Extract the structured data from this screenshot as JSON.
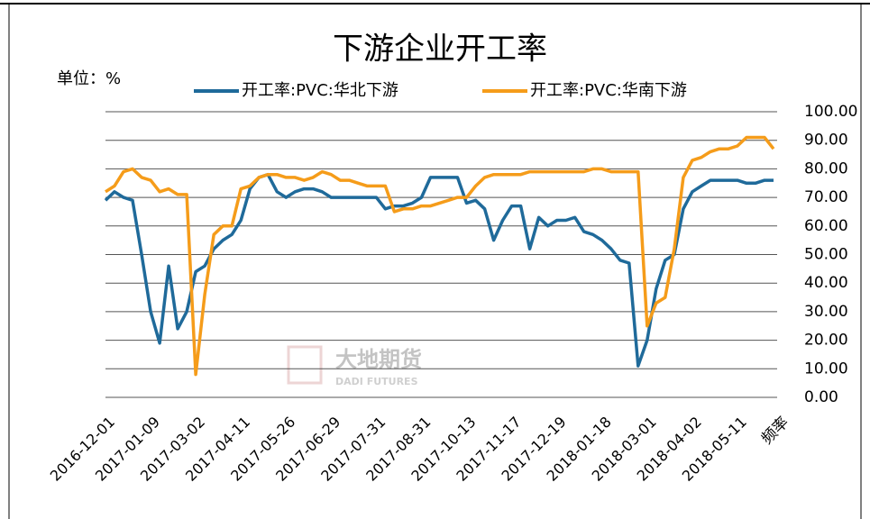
{
  "chart_data": {
    "type": "line",
    "title": "下游企业开工率",
    "unit_label": "单位：%",
    "x_label": "频率",
    "watermark": {
      "name": "大地期货",
      "sub": "DADI FUTURES"
    },
    "categories": [
      "2016-12-01",
      null,
      null,
      null,
      null,
      "2017-01-09",
      null,
      null,
      null,
      null,
      "2017-03-02",
      null,
      null,
      null,
      null,
      "2017-04-11",
      null,
      null,
      null,
      null,
      "2017-05-26",
      null,
      null,
      null,
      null,
      "2017-06-29",
      null,
      null,
      null,
      null,
      "2017-07-31",
      null,
      null,
      null,
      null,
      "2017-08-31",
      null,
      null,
      null,
      null,
      "2017-10-13",
      null,
      null,
      null,
      null,
      "2017-11-17",
      null,
      null,
      null,
      null,
      "2017-12-19",
      null,
      null,
      null,
      null,
      "2018-01-18",
      null,
      null,
      null,
      null,
      "2018-03-01",
      null,
      null,
      null,
      null,
      "2018-04-02",
      null,
      null,
      null,
      null,
      "2018-05-11",
      null,
      null,
      null,
      null
    ],
    "series": [
      {
        "name": "开工率:PVC:华北下游",
        "color": "#1f6a9a",
        "values": [
          69,
          72,
          70,
          69,
          50,
          30,
          19,
          46,
          24,
          30,
          44,
          46,
          52,
          55,
          57,
          62,
          73,
          77,
          78,
          72,
          70,
          72,
          73,
          73,
          72,
          70,
          70,
          70,
          70,
          70,
          70,
          66,
          67,
          67,
          68,
          70,
          77,
          77,
          77,
          77,
          68,
          69,
          66,
          55,
          62,
          67,
          67,
          52,
          63,
          60,
          62,
          62,
          63,
          58,
          57,
          55,
          52,
          48,
          47,
          11,
          20,
          38,
          48,
          50,
          66,
          72,
          74,
          76,
          76,
          76,
          76,
          75,
          75,
          76,
          76
        ]
      },
      {
        "name": "开工率:PVC:华南下游",
        "color": "#f59c1a",
        "values": [
          72,
          74,
          79,
          80,
          77,
          76,
          72,
          73,
          71,
          71,
          8,
          36,
          57,
          60,
          60,
          73,
          74,
          77,
          78,
          78,
          77,
          77,
          76,
          77,
          79,
          78,
          76,
          76,
          75,
          74,
          74,
          74,
          65,
          66,
          66,
          67,
          67,
          68,
          69,
          70,
          70,
          74,
          77,
          78,
          78,
          78,
          78,
          79,
          79,
          79,
          79,
          79,
          79,
          79,
          80,
          80,
          79,
          79,
          79,
          79,
          25,
          33,
          35,
          52,
          77,
          83,
          84,
          86,
          87,
          87,
          88,
          91,
          91,
          91,
          87
        ]
      }
    ],
    "ylim": [
      0,
      100
    ],
    "yticks": [
      {
        "value": 0,
        "label": "0.00"
      },
      {
        "value": 10,
        "label": "10.00"
      },
      {
        "value": 20,
        "label": "20.00"
      },
      {
        "value": 30,
        "label": "30.00"
      },
      {
        "value": 40,
        "label": "40.00"
      },
      {
        "value": 50,
        "label": "50.00"
      },
      {
        "value": 60,
        "label": "60.00"
      },
      {
        "value": 70,
        "label": "70.00"
      },
      {
        "value": 80,
        "label": "80.00"
      },
      {
        "value": 90,
        "label": "90.00"
      },
      {
        "value": 100,
        "label": "100.00"
      }
    ],
    "grid": true
  }
}
